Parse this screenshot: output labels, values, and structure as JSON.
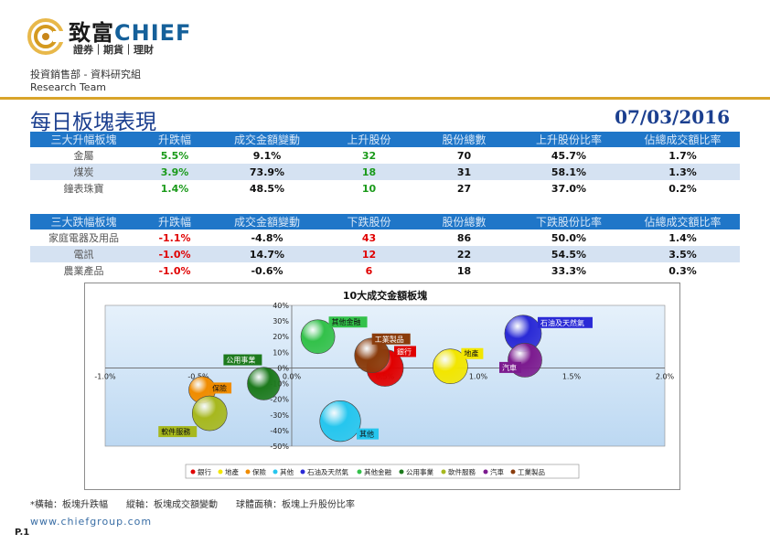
{
  "brand": {
    "name_cn": "致富",
    "name_en": "CHIEF",
    "sub": "證券｜期貨｜理財"
  },
  "header": {
    "dept": "投資銷售部 - 資料研究組",
    "team": "Research Team"
  },
  "title": "每日板塊表現",
  "date": "07/03/2016",
  "top_table": {
    "headers": [
      "三大升幅板塊",
      "升跌幅",
      "成交金額變動",
      "上升股份",
      "股份總數",
      "上升股份比率",
      "佔總成交額比率"
    ],
    "rows": [
      [
        "金屬",
        "5.5%",
        "9.1%",
        "32",
        "70",
        "45.7%",
        "1.7%"
      ],
      [
        "煤炭",
        "3.9%",
        "73.9%",
        "18",
        "31",
        "58.1%",
        "1.3%"
      ],
      [
        "鐘表珠寶",
        "1.4%",
        "48.5%",
        "10",
        "27",
        "37.0%",
        "0.2%"
      ]
    ]
  },
  "bottom_table": {
    "headers": [
      "三大跌幅板塊",
      "升跌幅",
      "成交金額變動",
      "下跌股份",
      "股份總數",
      "下跌股份比率",
      "佔總成交額比率"
    ],
    "rows": [
      [
        "家庭電器及用品",
        "-1.1%",
        "-4.8%",
        "43",
        "86",
        "50.0%",
        "1.4%"
      ],
      [
        "電訊",
        "-1.0%",
        "14.7%",
        "12",
        "22",
        "54.5%",
        "3.5%"
      ],
      [
        "農業產品",
        "-1.0%",
        "-0.6%",
        "6",
        "18",
        "33.3%",
        "0.3%"
      ]
    ]
  },
  "chart_data": {
    "type": "scatter",
    "title": "10大成交金額板塊",
    "xlim": [
      -1.0,
      2.0
    ],
    "ylim": [
      -50,
      40
    ],
    "x_ticks": [
      "-1.0%",
      "-0.5%",
      "0.0%",
      "0.5%",
      "1.0%",
      "1.5%",
      "2.0%"
    ],
    "x_tick_values": [
      -1.0,
      -0.5,
      0.0,
      0.5,
      1.0,
      1.5,
      2.0
    ],
    "y_ticks": [
      "40%",
      "30%",
      "20%",
      "10%",
      "0%",
      "-10%",
      "-20%",
      "-30%",
      "-40%",
      "-50%"
    ],
    "y_tick_values": [
      40,
      30,
      20,
      10,
      0,
      -10,
      -20,
      -30,
      -40,
      -50
    ],
    "legend_position": "bottom",
    "series": [
      {
        "name": "銀行",
        "x": 0.5,
        "y": 0,
        "size": 0.55,
        "color": "#e00000",
        "label_color": "#e00000"
      },
      {
        "name": "地產",
        "x": 0.85,
        "y": 1,
        "size": 0.5,
        "color": "#f2e600",
        "label_color": "#f2e600"
      },
      {
        "name": "保險",
        "x": -0.48,
        "y": -14,
        "size": 0.3,
        "color": "#f08c00",
        "label_color": "#f08c00"
      },
      {
        "name": "其他",
        "x": 0.26,
        "y": -34,
        "size": 0.65,
        "color": "#26c6ee",
        "label_color": "#26c6ee"
      },
      {
        "name": "石油及天然氣",
        "x": 1.24,
        "y": 22,
        "size": 0.55,
        "color": "#2a2ad6",
        "label_color": "#2a2ad6"
      },
      {
        "name": "其他金融",
        "x": 0.14,
        "y": 20,
        "size": 0.48,
        "color": "#33c14a",
        "label_color": "#33c14a"
      },
      {
        "name": "公用事業",
        "x": -0.15,
        "y": -10,
        "size": 0.45,
        "color": "#1d7a1d",
        "label_color": "#1d7a1d"
      },
      {
        "name": "軟件服務",
        "x": -0.44,
        "y": -29,
        "size": 0.5,
        "color": "#a7b81e",
        "label_color": "#a7b81e"
      },
      {
        "name": "汽車",
        "x": 1.25,
        "y": 5,
        "size": 0.48,
        "color": "#7c1b8f",
        "label_color": "#7c1b8f"
      },
      {
        "name": "工業製品",
        "x": 0.43,
        "y": 8,
        "size": 0.5,
        "color": "#8a3c0c",
        "label_color": "#8a3c0c"
      }
    ]
  },
  "footnote": "*橫軸：板塊升跌幅　　縱軸：板塊成交額變動　　球體面積：板塊上升股份比率",
  "website": "www.chiefgroup.com",
  "page": "P.1"
}
